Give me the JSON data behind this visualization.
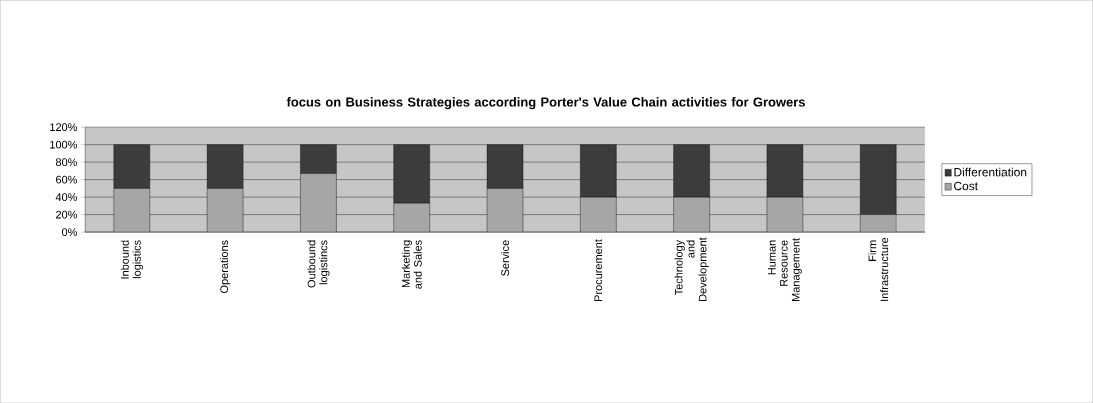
{
  "chart_data": {
    "type": "bar",
    "stacked": true,
    "title": "focus on Business Strategies according Porter's Value Chain activities for Growers",
    "categories": [
      "Inbound logistics",
      "Operations",
      "Outbound logistincs",
      "Marketing and Sales",
      "Service",
      "Procurement",
      "Technology and Development",
      "Human Resource Management",
      "Firm Infrastructure"
    ],
    "series": [
      {
        "name": "Cost",
        "color": "#a6a6a6",
        "values": [
          50,
          50,
          67,
          33,
          50,
          40,
          40,
          40,
          20
        ]
      },
      {
        "name": "Differentiation",
        "color": "#3c3c3c",
        "values": [
          50,
          50,
          33,
          67,
          50,
          60,
          60,
          60,
          80
        ]
      }
    ],
    "ylim": [
      0,
      120
    ],
    "yticks": [
      {
        "value": 0,
        "label": "0%"
      },
      {
        "value": 20,
        "label": "20%"
      },
      {
        "value": 40,
        "label": "40%"
      },
      {
        "value": 60,
        "label": "60%"
      },
      {
        "value": 80,
        "label": "80%"
      },
      {
        "value": 100,
        "label": "100%"
      },
      {
        "value": 120,
        "label": "120%"
      }
    ],
    "grid": "y",
    "legend": "right"
  }
}
